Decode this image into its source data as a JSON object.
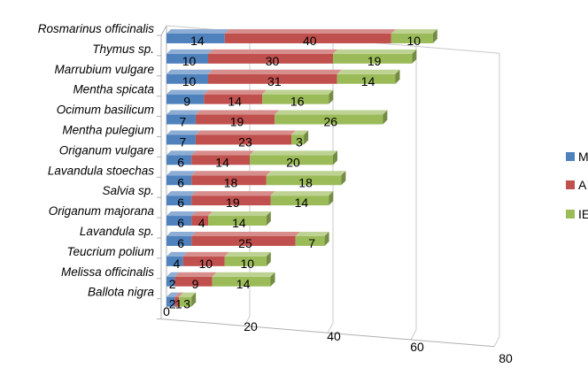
{
  "chart_data": {
    "type": "bar",
    "orientation": "horizontal",
    "stacked": true,
    "three_d": true,
    "categories": [
      "Rosmarinus officinalis",
      "Thymus sp.",
      "Marrubium vulgare",
      "Mentha spicata",
      "Ocimum basilicum",
      "Mentha pulegium",
      "Origanum vulgare",
      "Lavandula stoechas",
      "Salvia sp.",
      "Origanum majorana",
      "Lavandula sp.",
      "Teucrium polium",
      "Melissa officinalis",
      "Ballota nigra"
    ],
    "series": [
      {
        "name": "M",
        "color": "#4f81bd",
        "values": [
          14,
          10,
          10,
          9,
          7,
          7,
          6,
          6,
          6,
          6,
          6,
          4,
          2,
          2
        ]
      },
      {
        "name": "A",
        "color": "#c0504d",
        "values": [
          40,
          30,
          31,
          14,
          19,
          23,
          14,
          18,
          19,
          4,
          25,
          10,
          9,
          1
        ]
      },
      {
        "name": "IE",
        "color": "#9bbb59",
        "values": [
          10,
          19,
          14,
          16,
          26,
          3,
          20,
          18,
          14,
          14,
          7,
          10,
          14,
          3
        ]
      }
    ],
    "value_labels": [
      [
        "14",
        "40",
        "10"
      ],
      [
        "10",
        "30",
        "19"
      ],
      [
        "10",
        "31",
        "14"
      ],
      [
        "9",
        "14",
        "16"
      ],
      [
        "7",
        "19",
        "26"
      ],
      [
        "7",
        "23",
        "3"
      ],
      [
        "6",
        "14",
        "20"
      ],
      [
        "6",
        "18",
        "18"
      ],
      [
        "6",
        "19",
        "14"
      ],
      [
        "6",
        "4",
        "14"
      ],
      [
        "6",
        "25",
        "7"
      ],
      [
        "4",
        "10",
        "10"
      ],
      [
        "2",
        "9",
        "14"
      ],
      [
        "2",
        "1",
        "3"
      ]
    ],
    "xlim": [
      0,
      80
    ],
    "xticks": [
      "0",
      "20",
      "40",
      "60",
      "80"
    ],
    "grid": true,
    "legend_position": "right",
    "title": "",
    "xlabel": "",
    "ylabel": ""
  }
}
